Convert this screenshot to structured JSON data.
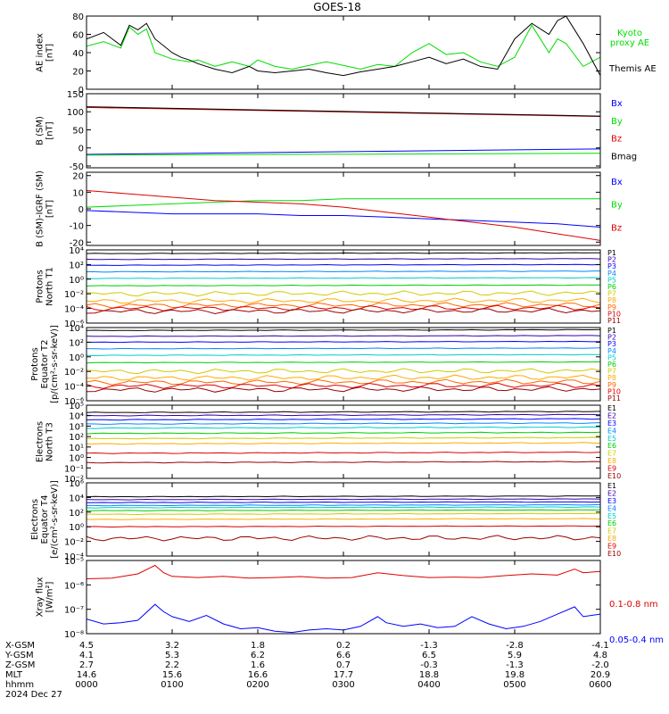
{
  "chart_data": {
    "type": "line",
    "title": "GOES-18",
    "panels": [
      {
        "id": "ae",
        "ylabel": [
          "AE index",
          "[nT]"
        ],
        "yscale": "linear",
        "ylim": [
          0,
          80
        ],
        "yticks": [
          0,
          20,
          40,
          60,
          80
        ],
        "yticklabels": [
          "0",
          "20",
          "40",
          "60",
          "80"
        ],
        "series": [
          {
            "name": "Kyoto proxy AE",
            "color": "#00dd00",
            "x": [
              0,
              0.2,
              0.4,
              0.5,
              0.6,
              0.7,
              0.8,
              1.0,
              1.2,
              1.3,
              1.5,
              1.7,
              1.9,
              2.0,
              2.2,
              2.4,
              2.6,
              2.8,
              3.0,
              3.2,
              3.4,
              3.6,
              3.8,
              4.0,
              4.2,
              4.4,
              4.6,
              4.8,
              5.0,
              5.2,
              5.4,
              5.5,
              5.6,
              5.8,
              6.0
            ],
            "values": [
              47,
              52,
              45,
              68,
              60,
              66,
              40,
              33,
              30,
              32,
              25,
              30,
              25,
              32,
              25,
              22,
              26,
              30,
              26,
              22,
              27,
              25,
              40,
              50,
              38,
              40,
              30,
              25,
              35,
              70,
              40,
              55,
              50,
              25,
              35
            ]
          },
          {
            "name": "Themis AE",
            "color": "#000000",
            "x": [
              0,
              0.2,
              0.4,
              0.5,
              0.6,
              0.7,
              0.8,
              1.0,
              1.1,
              1.2,
              1.3,
              1.5,
              1.7,
              1.9,
              2.0,
              2.2,
              2.4,
              2.6,
              2.8,
              3.0,
              3.2,
              3.4,
              3.6,
              3.8,
              4.0,
              4.2,
              4.4,
              4.6,
              4.8,
              5.0,
              5.2,
              5.4,
              5.5,
              5.6,
              5.8,
              6.0
            ],
            "values": [
              55,
              62,
              48,
              70,
              65,
              72,
              55,
              40,
              35,
              32,
              28,
              22,
              18,
              25,
              20,
              18,
              20,
              22,
              18,
              15,
              19,
              22,
              25,
              30,
              35,
              28,
              33,
              25,
              22,
              55,
              72,
              60,
              75,
              80,
              50,
              15
            ]
          }
        ],
        "legend": [
          "Kyoto proxy AE",
          "Themis AE"
        ]
      },
      {
        "id": "bsm",
        "ylabel": [
          "B (SM)",
          "[nT]"
        ],
        "yscale": "linear",
        "ylim": [
          -55,
          150
        ],
        "yticks": [
          -50,
          0,
          50,
          100,
          150
        ],
        "yticklabels": [
          "-50",
          "0",
          "50",
          "100",
          "150"
        ],
        "series": [
          {
            "name": "Bx",
            "color": "#0000ff",
            "x": [
              0,
              6
            ],
            "values": [
              -18,
              -3
            ]
          },
          {
            "name": "By",
            "color": "#00dd00",
            "x": [
              0,
              6
            ],
            "values": [
              -20,
              -15
            ]
          },
          {
            "name": "Bz",
            "color": "#dd0000",
            "x": [
              0,
              6
            ],
            "values": [
              112,
              87
            ]
          },
          {
            "name": "Bmag",
            "color": "#000000",
            "x": [
              0,
              6
            ],
            "values": [
              114,
              88
            ]
          }
        ],
        "legend": [
          "Bx",
          "By",
          "Bz",
          "Bmag"
        ]
      },
      {
        "id": "bigrf",
        "ylabel": [
          "B (SM)-IGRF (SM)",
          "[nT]"
        ],
        "yscale": "linear",
        "ylim": [
          -22,
          22
        ],
        "yticks": [
          -20,
          -10,
          0,
          10,
          20
        ],
        "yticklabels": [
          "-20",
          "-10",
          "0",
          "10",
          "20"
        ],
        "series": [
          {
            "name": "Bx",
            "color": "#0000ff",
            "x": [
              0,
              0.5,
              1.0,
              1.5,
              2.0,
              2.5,
              3.0,
              3.5,
              4.0,
              4.5,
              5.0,
              5.5,
              6.0
            ],
            "values": [
              -1,
              -2,
              -3,
              -3,
              -3,
              -4,
              -4,
              -5,
              -6,
              -7,
              -8,
              -9,
              -11
            ]
          },
          {
            "name": "By",
            "color": "#00dd00",
            "x": [
              0,
              0.5,
              1.0,
              1.5,
              2.0,
              2.5,
              3.0,
              3.5,
              4.0,
              4.5,
              5.0,
              5.5,
              6.0
            ],
            "values": [
              1,
              2,
              3,
              4,
              5,
              5,
              6,
              6,
              6,
              6,
              6,
              6,
              6
            ]
          },
          {
            "name": "Bz",
            "color": "#dd0000",
            "x": [
              0,
              0.5,
              1.0,
              1.5,
              2.0,
              2.5,
              3.0,
              3.5,
              4.0,
              4.5,
              5.0,
              5.5,
              6.0
            ],
            "values": [
              11,
              9,
              7,
              5,
              4,
              3,
              1,
              -2,
              -5,
              -8,
              -11,
              -15,
              -19
            ]
          }
        ],
        "legend": [
          "Bx",
          "By",
          "Bz"
        ]
      },
      {
        "id": "protons_t1",
        "ylabel": [
          "Protons",
          "North T1"
        ],
        "yscale": "log",
        "ylim": [
          -6,
          4
        ],
        "yticks": [
          -6,
          -4,
          -2,
          0,
          2,
          4
        ],
        "yticklabels": [
          "10⁻⁶",
          "10⁻⁴",
          "10⁻²",
          "10⁰",
          "10²",
          "10⁴"
        ],
        "channels": [
          {
            "name": "P1",
            "color": "#000000",
            "level": 3.5
          },
          {
            "name": "P2",
            "color": "#3300aa",
            "level": 2.7
          },
          {
            "name": "P3",
            "color": "#0000ff",
            "level": 1.9
          },
          {
            "name": "P4",
            "color": "#0088ff",
            "level": 1.0
          },
          {
            "name": "P5",
            "color": "#00cccc",
            "level": 0.1
          },
          {
            "name": "P6",
            "color": "#00cc00",
            "level": -0.9
          },
          {
            "name": "P7",
            "color": "#cccc00",
            "level": -2.0
          },
          {
            "name": "P8",
            "color": "#ffaa00",
            "level": -3.0
          },
          {
            "name": "P9",
            "color": "#ff6600",
            "level": -3.6
          },
          {
            "name": "P10",
            "color": "#dd0000",
            "level": -4.0
          },
          {
            "name": "P11",
            "color": "#990000",
            "level": -4.4
          }
        ]
      },
      {
        "id": "protons_t2",
        "ylabel": [
          "Protons",
          "Equator T2",
          "[p/(cm²-s-sr-keV)]"
        ],
        "yscale": "log",
        "ylim": [
          -6,
          4
        ],
        "yticks": [
          -6,
          -4,
          -2,
          0,
          2,
          4
        ],
        "yticklabels": [
          "10⁻⁶",
          "10⁻⁴",
          "10⁻²",
          "10⁰",
          "10²",
          "10⁴"
        ],
        "channels": [
          {
            "name": "P1",
            "color": "#000000",
            "level": 3.6
          },
          {
            "name": "P2",
            "color": "#3300aa",
            "level": 2.8
          },
          {
            "name": "P3",
            "color": "#0000ff",
            "level": 2.0
          },
          {
            "name": "P4",
            "color": "#0088ff",
            "level": 1.1
          },
          {
            "name": "P5",
            "color": "#00cccc",
            "level": 0.2
          },
          {
            "name": "P6",
            "color": "#00cc00",
            "level": -0.8
          },
          {
            "name": "P7",
            "color": "#cccc00",
            "level": -2.0
          },
          {
            "name": "P8",
            "color": "#ffaa00",
            "level": -2.9
          },
          {
            "name": "P9",
            "color": "#ff6600",
            "level": -3.5
          },
          {
            "name": "P10",
            "color": "#dd0000",
            "level": -4.0
          },
          {
            "name": "P11",
            "color": "#990000",
            "level": -4.5
          }
        ]
      },
      {
        "id": "electrons_t3",
        "ylabel": [
          "Electrons",
          "North T3"
        ],
        "yscale": "log",
        "ylim": [
          -2,
          5
        ],
        "yticks": [
          -2,
          -1,
          0,
          1,
          2,
          3,
          4,
          5
        ],
        "yticklabels": [
          "10⁻²",
          "10⁻¹",
          "10⁰",
          "10¹",
          "10²",
          "10³",
          "10⁴",
          "10⁵"
        ],
        "channels": [
          {
            "name": "E1",
            "color": "#000000",
            "level": 4.3
          },
          {
            "name": "E2",
            "color": "#3300aa",
            "level": 4.0
          },
          {
            "name": "E3",
            "color": "#0000ff",
            "level": 3.6
          },
          {
            "name": "E4",
            "color": "#0088ff",
            "level": 3.2
          },
          {
            "name": "E5",
            "color": "#00cccc",
            "level": 2.8
          },
          {
            "name": "E6",
            "color": "#00cc00",
            "level": 2.3
          },
          {
            "name": "E7",
            "color": "#cccc00",
            "level": 1.8
          },
          {
            "name": "E8",
            "color": "#ffaa00",
            "level": 1.3
          },
          {
            "name": "E9",
            "color": "#dd0000",
            "level": 0.4
          },
          {
            "name": "E10",
            "color": "#990000",
            "level": -0.5
          }
        ]
      },
      {
        "id": "electrons_t4",
        "ylabel": [
          "Electrons",
          "Equator T4",
          "[e/(cm²-s-sr-keV)]"
        ],
        "yscale": "log",
        "ylim": [
          -4,
          6
        ],
        "yticks": [
          -4,
          -2,
          0,
          2,
          4,
          6
        ],
        "yticklabels": [
          "10⁻⁴",
          "10⁻²",
          "10⁰",
          "10²",
          "10⁴",
          "10⁶"
        ],
        "channels": [
          {
            "name": "E1",
            "color": "#000000",
            "level": 4.1
          },
          {
            "name": "E2",
            "color": "#3300aa",
            "level": 3.7
          },
          {
            "name": "E3",
            "color": "#0000ff",
            "level": 3.3
          },
          {
            "name": "E4",
            "color": "#0088ff",
            "level": 2.9
          },
          {
            "name": "E5",
            "color": "#00cccc",
            "level": 2.6
          },
          {
            "name": "E6",
            "color": "#00cc00",
            "level": 2.2
          },
          {
            "name": "E7",
            "color": "#cccc00",
            "level": 1.7
          },
          {
            "name": "E8",
            "color": "#ffaa00",
            "level": 1.0
          },
          {
            "name": "E9",
            "color": "#dd0000",
            "level": 0.0
          },
          {
            "name": "E10",
            "color": "#990000",
            "level": -1.6
          }
        ]
      },
      {
        "id": "xray",
        "ylabel": [
          "Xray flux",
          "[W/m²]"
        ],
        "yscale": "log",
        "ylim": [
          -8,
          -5
        ],
        "yticks": [
          -8,
          -7,
          -6,
          -5
        ],
        "yticklabels": [
          "10⁻⁸",
          "10⁻⁷",
          "10⁻⁶",
          "10⁻⁵"
        ],
        "series": [
          {
            "name": "0.1-0.8 nm",
            "color": "#dd0000",
            "x": [
              0,
              0.3,
              0.6,
              0.8,
              0.9,
              1.0,
              1.3,
              1.6,
              1.9,
              2.2,
              2.5,
              2.8,
              3.1,
              3.4,
              3.7,
              4.0,
              4.3,
              4.6,
              4.9,
              5.2,
              5.5,
              5.7,
              5.8,
              6.0
            ],
            "values": [
              -5.75,
              -5.72,
              -5.55,
              -5.2,
              -5.5,
              -5.65,
              -5.7,
              -5.65,
              -5.72,
              -5.7,
              -5.66,
              -5.72,
              -5.7,
              -5.5,
              -5.62,
              -5.7,
              -5.68,
              -5.7,
              -5.62,
              -5.55,
              -5.6,
              -5.35,
              -5.5,
              -5.45
            ]
          },
          {
            "name": "0.05-0.4 nm",
            "color": "#0000ff",
            "x": [
              0,
              0.2,
              0.4,
              0.6,
              0.8,
              0.9,
              1.0,
              1.2,
              1.4,
              1.6,
              1.8,
              2.0,
              2.2,
              2.4,
              2.6,
              2.8,
              3.0,
              3.2,
              3.4,
              3.5,
              3.7,
              3.9,
              4.1,
              4.3,
              4.5,
              4.7,
              4.9,
              5.1,
              5.3,
              5.5,
              5.7,
              5.8,
              6.0
            ],
            "values": [
              -7.4,
              -7.6,
              -7.55,
              -7.45,
              -6.8,
              -7.1,
              -7.3,
              -7.5,
              -7.25,
              -7.6,
              -7.8,
              -7.75,
              -7.9,
              -7.95,
              -7.85,
              -7.8,
              -7.85,
              -7.7,
              -7.3,
              -7.55,
              -7.7,
              -7.6,
              -7.75,
              -7.7,
              -7.3,
              -7.6,
              -7.8,
              -7.7,
              -7.5,
              -7.2,
              -6.9,
              -7.3,
              -7.2
            ]
          }
        ],
        "legend": [
          "0.1-0.8 nm",
          "0.05-0.4 nm"
        ]
      }
    ],
    "x_axis": {
      "range_hours": [
        0,
        6
      ],
      "ticks": [
        0,
        1,
        2,
        3,
        4,
        5,
        6
      ],
      "row_labels": [
        "X-GSM",
        "Y-GSM",
        "Z-GSM",
        "MLT",
        "hhmm",
        "2024 Dec 27"
      ],
      "rows": [
        [
          "4.5",
          "3.2",
          "1.8",
          "0.2",
          "-1.3",
          "-2.8",
          "-4.1"
        ],
        [
          "4.1",
          "5.3",
          "6.2",
          "6.6",
          "6.5",
          "5.9",
          "4.8"
        ],
        [
          "2.7",
          "2.2",
          "1.6",
          "0.7",
          "-0.3",
          "-1.3",
          "-2.0"
        ],
        [
          "14.6",
          "15.6",
          "16.6",
          "17.7",
          "18.8",
          "19.8",
          "20.9"
        ],
        [
          "0000",
          "0100",
          "0200",
          "0300",
          "0400",
          "0500",
          "0600"
        ]
      ]
    },
    "colors": {
      "axis": "#000000",
      "background": "#ffffff"
    }
  }
}
